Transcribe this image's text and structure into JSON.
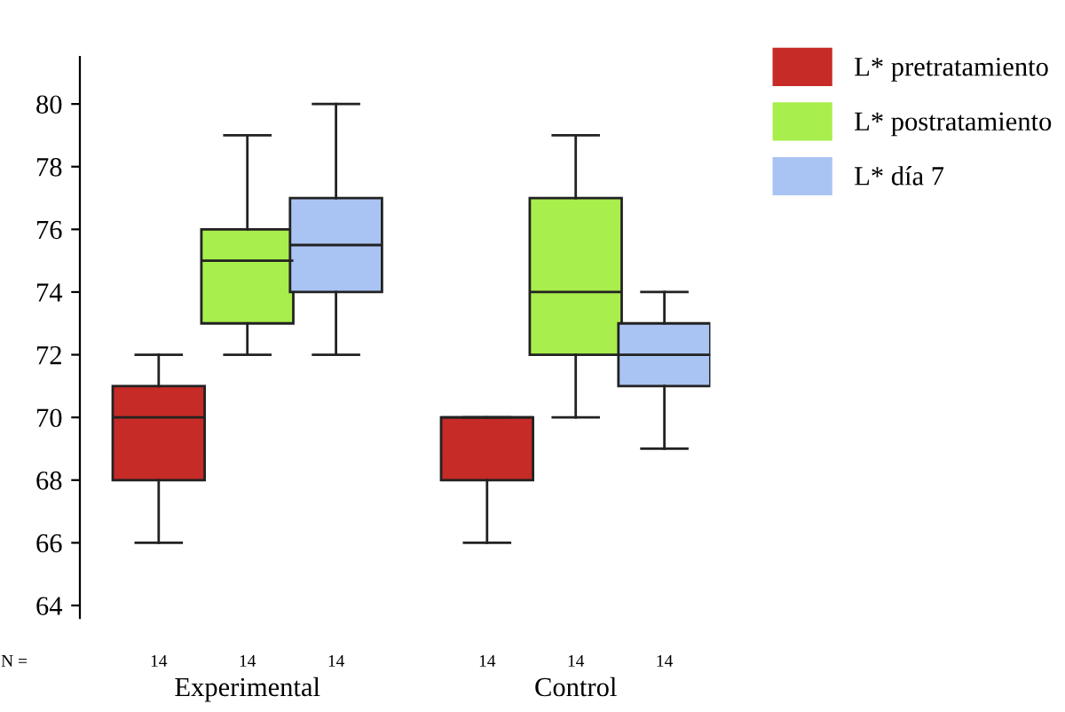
{
  "chart_data": {
    "type": "box",
    "categories": [
      "Experimental",
      "Control"
    ],
    "series": [
      {
        "name": "L* pretratamiento",
        "color": "#c62b27",
        "boxes": [
          {
            "low": 66,
            "q1": 68,
            "median": 70,
            "q3": 71,
            "high": 72
          },
          {
            "low": 66,
            "q1": 68,
            "median": 70,
            "q3": 70,
            "high": 70
          }
        ]
      },
      {
        "name": "L* postratamiento",
        "color": "#a8ee4c",
        "boxes": [
          {
            "low": 72,
            "q1": 73,
            "median": 75,
            "q3": 76,
            "high": 79
          },
          {
            "low": 70,
            "q1": 72,
            "median": 74,
            "q3": 77,
            "high": 79
          }
        ]
      },
      {
        "name": "L* día 7",
        "color": "#a9c3f3",
        "boxes": [
          {
            "low": 72,
            "q1": 74,
            "median": 75.5,
            "q3": 77,
            "high": 80
          },
          {
            "low": 69,
            "q1": 71,
            "median": 72,
            "q3": 73,
            "high": 74
          }
        ]
      }
    ],
    "ylim": [
      63.6,
      81.5
    ],
    "yticks": [
      64,
      66,
      68,
      70,
      72,
      74,
      76,
      78,
      80
    ],
    "grid": false,
    "legend": "top right",
    "annotations": [
      "N =",
      "14",
      "14",
      "14",
      "14",
      "14",
      "14"
    ]
  }
}
